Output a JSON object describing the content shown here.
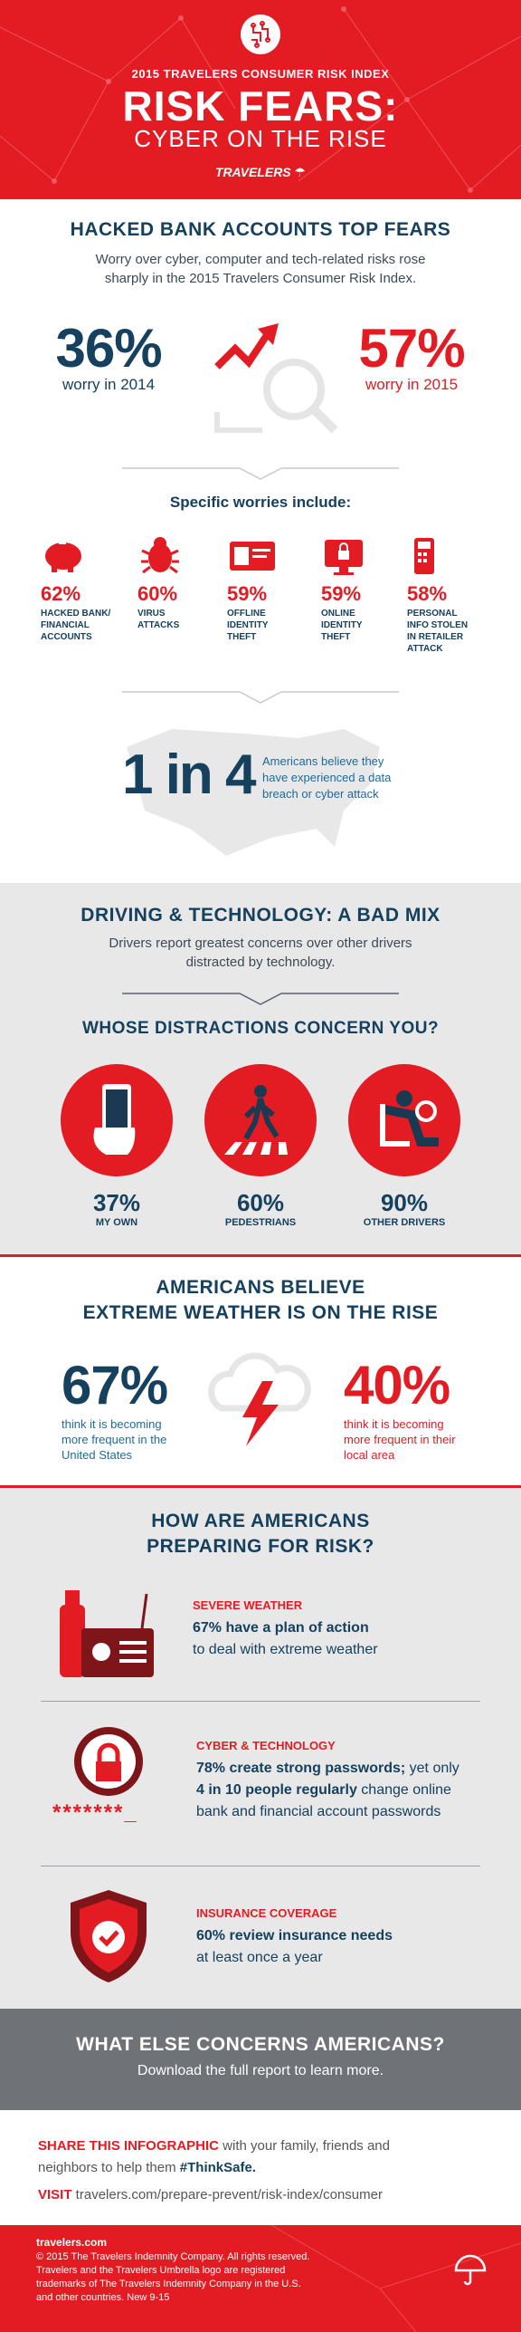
{
  "header": {
    "subtitle": "2015 TRAVELERS CONSUMER RISK INDEX",
    "title": "RISK FEARS:",
    "title2": "CYBER ON THE RISE",
    "brand": "TRAVELERS"
  },
  "hacked": {
    "heading": "HACKED BANK ACCOUNTS TOP FEARS",
    "lead_line1": "Worry over cyber, computer and tech-related risks rose",
    "lead_line2": "sharply in the 2015 Travelers Consumer Risk Index.",
    "left_pct": "36%",
    "left_caption": "worry in 2014",
    "right_pct": "57%",
    "right_caption": "worry in 2015",
    "worries_heading": "Specific worries include:",
    "worries": [
      {
        "pct": "62%",
        "l1": "HACKED BANK/",
        "l2": "FINANCIAL",
        "l3": "ACCOUNTS",
        "l4": "",
        "icon": "piggy-bank-icon"
      },
      {
        "pct": "60%",
        "l1": "VIRUS",
        "l2": "ATTACKS",
        "l3": "",
        "l4": "",
        "icon": "virus-bug-icon"
      },
      {
        "pct": "59%",
        "l1": "OFFLINE",
        "l2": "IDENTITY",
        "l3": "THEFT",
        "l4": "",
        "icon": "id-card-icon"
      },
      {
        "pct": "59%",
        "l1": "ONLINE",
        "l2": "IDENTITY",
        "l3": "THEFT",
        "l4": "",
        "icon": "computer-lock-icon"
      },
      {
        "pct": "58%",
        "l1": "PERSONAL",
        "l2": "INFO STOLEN",
        "l3": "IN RETAILER",
        "l4": "ATTACK",
        "icon": "card-reader-icon"
      }
    ],
    "one_in_four": "1 in 4",
    "one_in_four_l1": "Americans believe they",
    "one_in_four_l2": "have experienced a data",
    "one_in_four_l3": "breach or cyber attack"
  },
  "driving": {
    "heading": "DRIVING & TECHNOLOGY: A BAD MIX",
    "lead_line1": "Drivers report greatest concerns over other drivers",
    "lead_line2": "distracted by technology.",
    "question": "WHOSE DISTRACTIONS CONCERN YOU?",
    "items": [
      {
        "pct": "37%",
        "label": "MY OWN"
      },
      {
        "pct": "60%",
        "label": "PEDESTRIANS"
      },
      {
        "pct": "90%",
        "label": "OTHER DRIVERS"
      }
    ]
  },
  "weather": {
    "heading_line1": "AMERICANS BELIEVE",
    "heading_line2": "EXTREME WEATHER IS ON THE RISE",
    "left_pct": "67%",
    "left_l1": "think it is becoming",
    "left_l2": "more frequent in the",
    "left_l3": "United States",
    "right_pct": "40%",
    "right_l1": "think it is becoming",
    "right_l2": "more frequent in their",
    "right_l3": "local area"
  },
  "prep": {
    "heading_line1": "HOW ARE AMERICANS",
    "heading_line2": "PREPARING FOR RISK?",
    "weather_cat": "SEVERE WEATHER",
    "weather_bold": "67% have a plan of action",
    "weather_rest": "to deal with extreme weather",
    "cyber_cat": "CYBER & TECHNOLOGY",
    "cyber_bold1": "78% create strong passwords;",
    "cyber_rest1": " yet only",
    "cyber_bold2": "4 in 10 people regularly",
    "cyber_rest2": " change online",
    "cyber_rest3": "bank and financial account passwords",
    "password_mask": "*******_",
    "ins_cat": "INSURANCE COVERAGE",
    "ins_bold": "60% review insurance needs",
    "ins_rest": "at least once a year"
  },
  "else_section": {
    "heading": "WHAT ELSE CONCERNS AMERICANS?",
    "sub": "Download the full report to learn more."
  },
  "share": {
    "lead": "SHARE THIS INFOGRAPHIC",
    "text1": " with your family, friends and",
    "text2": "neighbors to help them ",
    "hashtag": "#ThinkSafe.",
    "visit": "VISIT",
    "url": " travelers.com/prepare-prevent/risk-index/consumer"
  },
  "footer": {
    "site": "travelers.com",
    "l1": "© 2015 The Travelers Indemnity Company. All rights reserved.",
    "l2": "Travelers and the Travelers Umbrella logo are registered",
    "l3": "trademarks of The Travelers Indemnity Company in the U.S.",
    "l4": "and other countries. New 9-15"
  },
  "colors": {
    "brand_red": "#e31b23",
    "navy": "#15405e",
    "light_gray": "#e8e8e9",
    "dark_gray": "#6f7377"
  }
}
